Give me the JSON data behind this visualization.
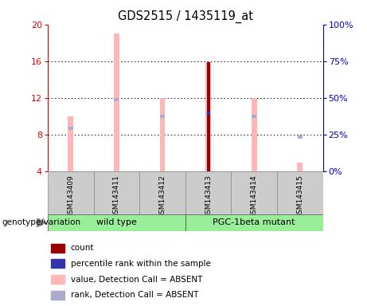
{
  "title": "GDS2515 / 1435119_at",
  "samples": [
    "GSM143409",
    "GSM143411",
    "GSM143412",
    "GSM143413",
    "GSM143414",
    "GSM143415"
  ],
  "ylim_left": [
    4,
    20
  ],
  "ylim_right": [
    0,
    100
  ],
  "yticks_left": [
    4,
    8,
    12,
    16,
    20
  ],
  "yticks_right": [
    0,
    25,
    50,
    75,
    100
  ],
  "pink_bar_bottom": 4,
  "pink_bar_top": [
    10.0,
    19.0,
    12.0,
    15.9,
    12.0,
    5.0
  ],
  "blue_rank_value": [
    8.7,
    11.8,
    10.0,
    10.3,
    10.0,
    7.7
  ],
  "count_bar_top": [
    null,
    null,
    null,
    15.9,
    null,
    null
  ],
  "percentile_rank": [
    null,
    null,
    null,
    10.3,
    null,
    null
  ],
  "pink_color": "#FFB6B6",
  "dark_red_color": "#990000",
  "blue_color": "#3333AA",
  "light_blue_color": "#AAAACC",
  "left_axis_color": "#DD0000",
  "right_axis_color": "#0000CC",
  "wt_group": [
    0,
    1,
    2
  ],
  "pgc_group": [
    3,
    4,
    5
  ],
  "wt_label": "wild type",
  "pgc_label": "PGC-1beta mutant",
  "group_color": "#99EE99",
  "sample_box_color": "#CCCCCC",
  "legend_items": [
    {
      "label": "count",
      "color": "#990000"
    },
    {
      "label": "percentile rank within the sample",
      "color": "#3333AA"
    },
    {
      "label": "value, Detection Call = ABSENT",
      "color": "#FFB6B6"
    },
    {
      "label": "rank, Detection Call = ABSENT",
      "color": "#AAAACC"
    }
  ]
}
